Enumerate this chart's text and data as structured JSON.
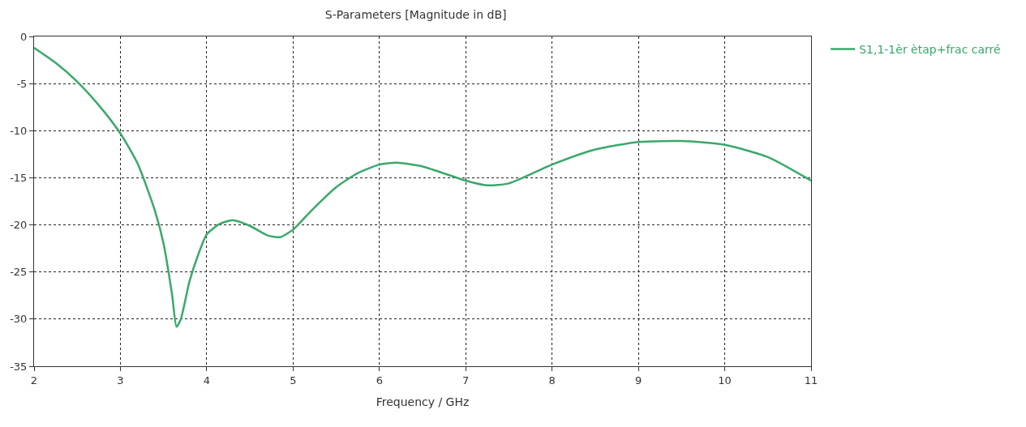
{
  "chart_data": {
    "type": "line",
    "title": "S-Parameters [Magnitude in dB]",
    "xlabel": "Frequency / GHz",
    "x": [
      2,
      2.25,
      2.5,
      2.75,
      3,
      3.2,
      3.4,
      3.5,
      3.6,
      3.65,
      3.7,
      3.8,
      3.9,
      4.0,
      4.15,
      4.3,
      4.5,
      4.7,
      4.85,
      5.0,
      5.2,
      5.5,
      5.75,
      6.0,
      6.2,
      6.5,
      7.0,
      7.25,
      7.5,
      8.0,
      8.5,
      9.0,
      9.5,
      10.0,
      10.5,
      11
    ],
    "series": [
      {
        "name": "S1,1-1èr ètap+frac carré",
        "color": "#3aa86b",
        "values": [
          -1.2,
          -2.8,
          -4.8,
          -7.3,
          -10.3,
          -13.5,
          -18.5,
          -22,
          -27.5,
          -30.8,
          -30,
          -26,
          -23.2,
          -21,
          -19.9,
          -19.5,
          -20.1,
          -21.1,
          -21.3,
          -20.5,
          -18.6,
          -16,
          -14.5,
          -13.6,
          -13.4,
          -13.8,
          -15.3,
          -15.8,
          -15.6,
          -13.6,
          -12,
          -11.2,
          -11.1,
          -11.5,
          -12.8,
          -15.3
        ]
      }
    ],
    "xlim": [
      2,
      11
    ],
    "xticks": [
      2,
      3,
      4,
      5,
      6,
      7,
      8,
      9,
      10,
      11
    ],
    "ylim": [
      -35,
      0
    ],
    "yticks": [
      -35,
      -30,
      -25,
      -20,
      -15,
      -10,
      -5,
      0
    ],
    "grid": true,
    "legend": "top right",
    "line_style": "solid",
    "marker": "none"
  }
}
